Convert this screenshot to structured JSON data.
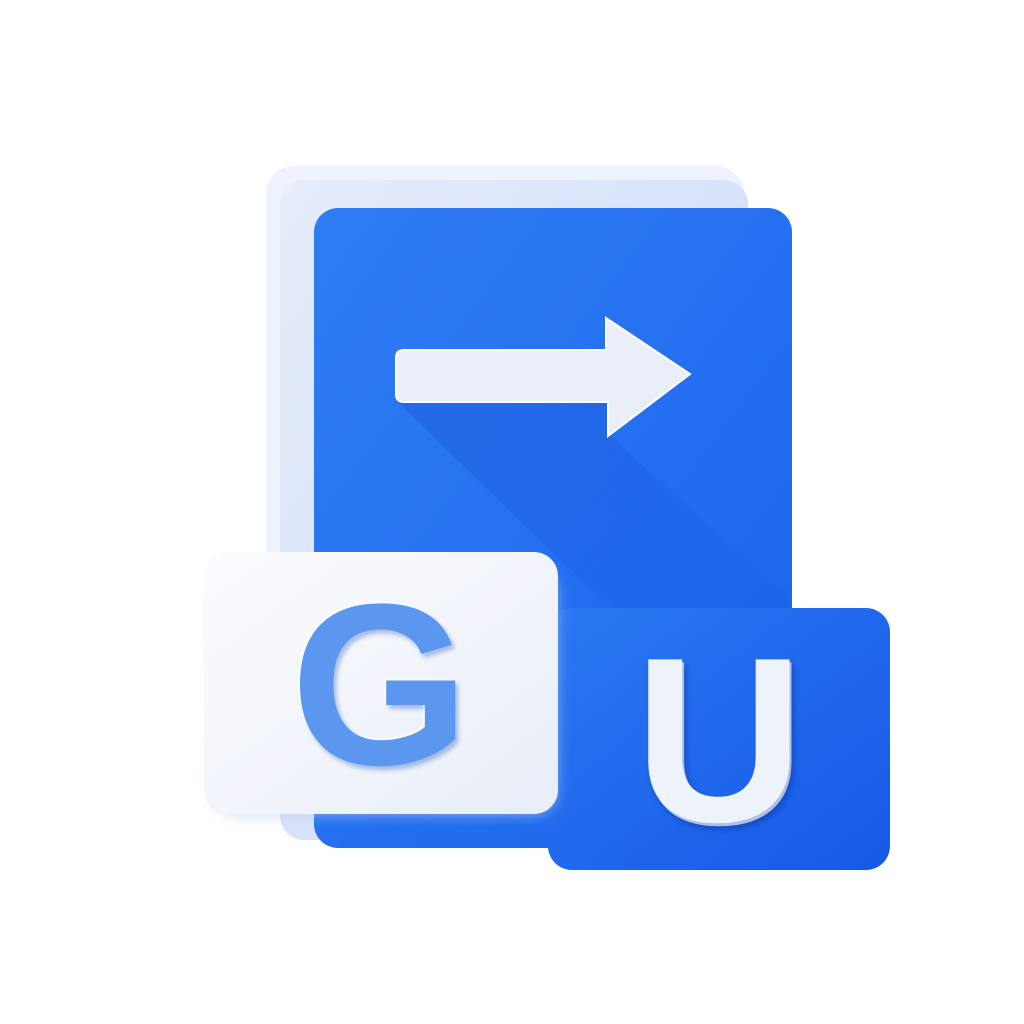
{
  "logo": {
    "letters": {
      "left": "G",
      "right": "U"
    },
    "icons": {
      "card": "document-card-icon",
      "arrow": "arrow-right-icon"
    },
    "colors": {
      "primary_blue": "#1f6ff0",
      "light_blue_card": "#d7e3f8",
      "white_tile": "#f4f6fb",
      "g_letter": "#5b97ee",
      "u_letter": "#eef2fb"
    }
  }
}
